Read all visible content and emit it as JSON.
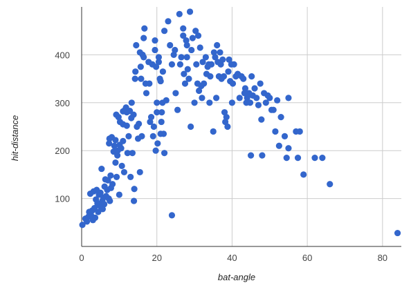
{
  "chart_data": {
    "type": "scatter",
    "xlabel": "bat-angle",
    "ylabel": "hit-distance",
    "xlim": [
      0,
      85
    ],
    "ylim": [
      0,
      500
    ],
    "xticks": [
      0,
      20,
      40,
      60,
      80
    ],
    "yticks": [
      100,
      200,
      300,
      400
    ],
    "grid": "vertical-and-horizontal",
    "point_color": "#3366cc",
    "series": [
      {
        "points": [
          [
            0.2,
            45
          ],
          [
            1,
            58
          ],
          [
            1.4,
            52
          ],
          [
            1.8,
            62
          ],
          [
            2,
            72
          ],
          [
            2.3,
            110
          ],
          [
            2.5,
            65
          ],
          [
            2.8,
            75
          ],
          [
            3,
            55
          ],
          [
            3.2,
            115
          ],
          [
            3.4,
            80
          ],
          [
            3.6,
            60
          ],
          [
            3.8,
            98
          ],
          [
            4,
            118
          ],
          [
            4.2,
            90
          ],
          [
            4.4,
            72
          ],
          [
            4.6,
            108
          ],
          [
            4.8,
            85
          ],
          [
            5,
            112
          ],
          [
            5.2,
            82
          ],
          [
            5.3,
            162
          ],
          [
            5.5,
            95
          ],
          [
            5.6,
            78
          ],
          [
            5.8,
            102
          ],
          [
            6,
            88
          ],
          [
            6.1,
            125
          ],
          [
            6.3,
            140
          ],
          [
            6.5,
            105
          ],
          [
            6.8,
            118
          ],
          [
            7,
            138
          ],
          [
            7.2,
            100
          ],
          [
            7.3,
            215
          ],
          [
            7.4,
            225
          ],
          [
            7.5,
            95
          ],
          [
            7.7,
            148
          ],
          [
            7.8,
            122
          ],
          [
            8,
            228
          ],
          [
            8.2,
            130
          ],
          [
            8.5,
            198
          ],
          [
            8.7,
            210
          ],
          [
            9,
            175
          ],
          [
            9,
            222
          ],
          [
            9.2,
            275
          ],
          [
            9.3,
            145
          ],
          [
            9.5,
            190
          ],
          [
            9.6,
            200
          ],
          [
            9.8,
            270
          ],
          [
            10,
            108
          ],
          [
            10.1,
            212
          ],
          [
            10.2,
            260
          ],
          [
            10.5,
            205
          ],
          [
            10.7,
            168
          ],
          [
            11,
            282
          ],
          [
            11,
            255
          ],
          [
            11,
            220
          ],
          [
            11.3,
            155
          ],
          [
            11.5,
            285
          ],
          [
            11.8,
            290
          ],
          [
            12,
            280
          ],
          [
            12,
            252
          ],
          [
            12.2,
            195
          ],
          [
            12.5,
            230
          ],
          [
            12.8,
            283
          ],
          [
            13,
            145
          ],
          [
            13.2,
            268
          ],
          [
            13.3,
            300
          ],
          [
            13.5,
            195
          ],
          [
            13.8,
            275
          ],
          [
            13.9,
            95
          ],
          [
            14,
            120
          ],
          [
            14.2,
            350
          ],
          [
            14.3,
            365
          ],
          [
            14.5,
            420
          ],
          [
            14.7,
            250
          ],
          [
            15,
            225
          ],
          [
            15.2,
            256
          ],
          [
            15.5,
            405
          ],
          [
            15.5,
            155
          ],
          [
            15.7,
            375
          ],
          [
            15.8,
            350
          ],
          [
            16,
            230
          ],
          [
            16.2,
            400
          ],
          [
            16.5,
            395
          ],
          [
            16.5,
            435
          ],
          [
            16.7,
            455
          ],
          [
            17,
            340
          ],
          [
            17.2,
            320
          ],
          [
            17.8,
            385
          ],
          [
            18,
            340
          ],
          [
            18.2,
            260
          ],
          [
            18.5,
            270
          ],
          [
            18.8,
            380
          ],
          [
            19,
            230
          ],
          [
            19.2,
            250
          ],
          [
            19.5,
            410
          ],
          [
            19.5,
            430
          ],
          [
            19.7,
            200
          ],
          [
            19.8,
            375
          ],
          [
            20,
            280
          ],
          [
            20,
            300
          ],
          [
            20.2,
            215
          ],
          [
            20.5,
            395
          ],
          [
            20.5,
            385
          ],
          [
            20.8,
            350
          ],
          [
            21,
            235
          ],
          [
            21,
            345
          ],
          [
            21.2,
            260
          ],
          [
            21.3,
            280
          ],
          [
            21.5,
            300
          ],
          [
            21.6,
            365
          ],
          [
            21.8,
            235
          ],
          [
            22,
            195
          ],
          [
            22,
            450
          ],
          [
            22.5,
            305
          ],
          [
            23,
            470
          ],
          [
            23.5,
            420
          ],
          [
            24,
            380
          ],
          [
            24,
            65
          ],
          [
            24.5,
            400
          ],
          [
            24.8,
            410
          ],
          [
            25,
            320
          ],
          [
            25.5,
            285
          ],
          [
            26,
            485
          ],
          [
            26.2,
            380
          ],
          [
            26.5,
            395
          ],
          [
            27,
            455
          ],
          [
            27,
            440
          ],
          [
            27.2,
            360
          ],
          [
            27.5,
            340
          ],
          [
            27.8,
            430
          ],
          [
            28,
            395
          ],
          [
            28,
            420
          ],
          [
            28.2,
            370
          ],
          [
            28.5,
            350
          ],
          [
            28.8,
            490
          ],
          [
            29,
            250
          ],
          [
            29.2,
            410
          ],
          [
            29.5,
            435
          ],
          [
            30,
            300
          ],
          [
            30.3,
            450
          ],
          [
            30.5,
            380
          ],
          [
            30.8,
            340
          ],
          [
            31,
            440
          ],
          [
            31.2,
            325
          ],
          [
            31.5,
            415
          ],
          [
            31.8,
            335
          ],
          [
            32,
            310
          ],
          [
            32.2,
            385
          ],
          [
            32.5,
            340
          ],
          [
            33,
            395
          ],
          [
            33.2,
            360
          ],
          [
            33.5,
            375
          ],
          [
            33.8,
            380
          ],
          [
            34,
            300
          ],
          [
            34.2,
            355
          ],
          [
            34.5,
            380
          ],
          [
            35,
            240
          ],
          [
            35.2,
            405
          ],
          [
            35.5,
            395
          ],
          [
            35.8,
            310
          ],
          [
            36,
            420
          ],
          [
            36.2,
            385
          ],
          [
            36.5,
            355
          ],
          [
            36.8,
            405
          ],
          [
            37,
            380
          ],
          [
            37.2,
            350
          ],
          [
            37.5,
            390
          ],
          [
            37.8,
            355
          ],
          [
            38,
            280
          ],
          [
            38.2,
            260
          ],
          [
            38.5,
            270
          ],
          [
            38.8,
            250
          ],
          [
            39,
            365
          ],
          [
            39.2,
            390
          ],
          [
            39.5,
            345
          ],
          [
            39.8,
            380
          ],
          [
            40,
            300
          ],
          [
            40.2,
            340
          ],
          [
            40.5,
            380
          ],
          [
            41,
            355
          ],
          [
            41.5,
            360
          ],
          [
            42,
            310
          ],
          [
            42.5,
            355
          ],
          [
            43,
            350
          ],
          [
            43.3,
            320
          ],
          [
            43.5,
            330
          ],
          [
            43.8,
            300
          ],
          [
            44,
            310
          ],
          [
            44.2,
            315
          ],
          [
            44.5,
            320
          ],
          [
            44.8,
            300
          ],
          [
            45,
            190
          ],
          [
            45.2,
            355
          ],
          [
            45.5,
            315
          ],
          [
            46,
            330
          ],
          [
            46.5,
            310
          ],
          [
            47,
            295
          ],
          [
            47.5,
            340
          ],
          [
            47.8,
            265
          ],
          [
            48,
            190
          ],
          [
            48.5,
            320
          ],
          [
            49,
            300
          ],
          [
            49.5,
            315
          ],
          [
            50,
            310
          ],
          [
            50.5,
            285
          ],
          [
            51,
            285
          ],
          [
            51.5,
            240
          ],
          [
            52,
            305
          ],
          [
            52.5,
            210
          ],
          [
            53,
            270
          ],
          [
            54,
            230
          ],
          [
            54.5,
            185
          ],
          [
            55,
            205
          ],
          [
            55,
            310
          ],
          [
            57,
            240
          ],
          [
            57.5,
            185
          ],
          [
            58,
            240
          ],
          [
            59,
            150
          ],
          [
            62,
            185
          ],
          [
            64,
            185
          ],
          [
            66,
            130
          ],
          [
            84,
            28
          ]
        ]
      }
    ]
  }
}
